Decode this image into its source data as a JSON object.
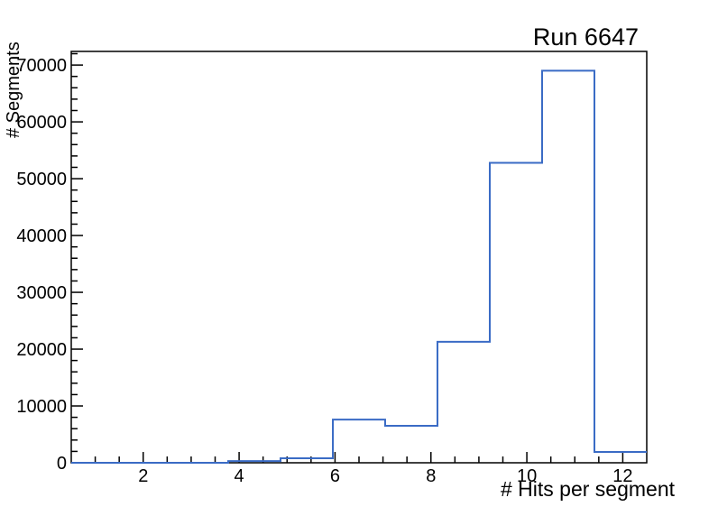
{
  "window": {
    "background": "#ffffff"
  },
  "chart_data": {
    "type": "bar",
    "style": "step-outline-histogram",
    "title": "Run 6647",
    "xlabel": "# Hits per segment",
    "ylabel": "# Segments",
    "xlim": [
      0.5,
      12.5
    ],
    "ylim": [
      0,
      72400
    ],
    "bin_edges": [
      0.5,
      1.591,
      2.682,
      3.773,
      4.864,
      5.955,
      7.045,
      8.136,
      9.227,
      10.318,
      11.409,
      12.5
    ],
    "counts": [
      0,
      0,
      0,
      300,
      800,
      7600,
      6500,
      21300,
      52800,
      69000,
      1900
    ],
    "x_major_ticks": [
      2,
      4,
      6,
      8,
      10,
      12
    ],
    "x_minor_step": 0.5,
    "y_major_ticks": [
      0,
      10000,
      20000,
      30000,
      40000,
      50000,
      60000,
      70000
    ],
    "y_minor_step": 2000,
    "grid": false,
    "legend": null,
    "line_color": "#3a6bc5",
    "axis_color": "#000000",
    "text_color": "#000000"
  }
}
